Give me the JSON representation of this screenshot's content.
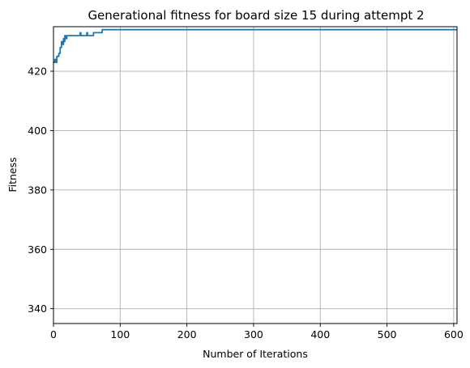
{
  "chart_data": {
    "type": "line",
    "title": "Generational fitness for board size 15 during attempt 2",
    "xlabel": "Number of Iterations",
    "ylabel": "Fitness",
    "xlim": [
      0,
      605
    ],
    "ylim": [
      335,
      435
    ],
    "xticks": [
      0,
      100,
      200,
      300,
      400,
      500,
      600
    ],
    "yticks": [
      340,
      360,
      380,
      400,
      420
    ],
    "grid": true,
    "series_color": "#1f77b4",
    "series": [
      {
        "x": [
          0,
          2,
          2,
          3,
          3,
          5,
          5,
          8,
          8,
          10,
          10,
          12,
          12,
          13,
          13,
          15,
          15,
          16,
          16,
          17,
          17,
          18,
          18,
          20,
          20,
          22,
          22,
          40,
          40,
          41,
          41,
          45,
          45,
          46,
          46,
          50,
          50,
          51,
          51,
          60,
          60,
          73,
          73,
          605
        ],
        "y": [
          423,
          423,
          424,
          424,
          423,
          423,
          425,
          425,
          426,
          426,
          428,
          428,
          430,
          430,
          429,
          429,
          431,
          431,
          430,
          430,
          432,
          432,
          431,
          431,
          432,
          432,
          432,
          432,
          433,
          433,
          432,
          432,
          432,
          432,
          432,
          432,
          433,
          433,
          432,
          432,
          433,
          433,
          434,
          434
        ]
      }
    ]
  }
}
